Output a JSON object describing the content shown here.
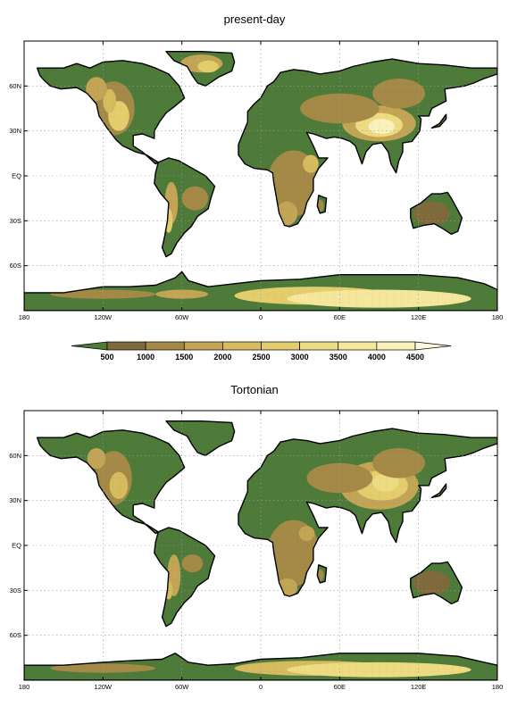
{
  "chart_data": [
    {
      "type": "heatmap",
      "title": "present-day",
      "x_ticks": [
        "180",
        "120W",
        "60W",
        "0",
        "60E",
        "120E",
        "180"
      ],
      "y_ticks": [
        "60N",
        "30N",
        "EQ",
        "30S",
        "60S"
      ],
      "grid": true,
      "description_of_data": "topography height field over land masks"
    },
    {
      "type": "heatmap",
      "title": "Tortonian",
      "x_ticks": [
        "180",
        "120W",
        "60W",
        "0",
        "60E",
        "120E",
        "180"
      ],
      "y_ticks": [
        "60N",
        "30N",
        "EQ",
        "30S",
        "60S"
      ],
      "grid": true
    }
  ],
  "colorbar": {
    "levels": [
      "500",
      "1000",
      "1500",
      "2000",
      "2500",
      "3000",
      "3500",
      "4000",
      "4500"
    ],
    "colors": [
      "#4e7b3a",
      "#7e6a3a",
      "#a58a47",
      "#c3a555",
      "#d6bc5f",
      "#e4cd6c",
      "#eedc82",
      "#f5e79c",
      "#faf1bb",
      "#fdf8dc"
    ]
  }
}
